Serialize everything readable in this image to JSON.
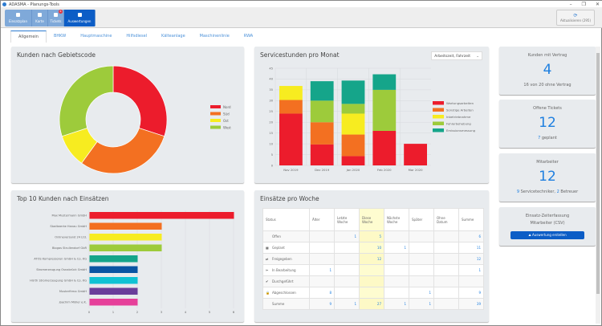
{
  "window": {
    "title": "ADASMA - Planungs-Tools",
    "min": "–",
    "max": "❐",
    "close": "✕"
  },
  "toolbar": {
    "buttons": [
      {
        "label": "Einsatzplan",
        "icon": "calendar-icon"
      },
      {
        "label": "Karte",
        "icon": "map-icon"
      },
      {
        "label": "Tickets",
        "icon": "chat-icon",
        "badge": "6"
      },
      {
        "label": "Auswertungen",
        "icon": "chart-icon",
        "active": true
      }
    ],
    "refresh_label": "Aktualisieren (295)"
  },
  "tabs": [
    "Allgemein",
    "BHKW",
    "Hauptmaschine",
    "Hilfsdiesel",
    "Kälteanlage",
    "Maschinenlinie",
    "RWA"
  ],
  "colors": {
    "red": "#ec1c2c",
    "orange": "#f37021",
    "yellow": "#f7ec20",
    "green": "#9dcb3b",
    "teal": "#15a58a",
    "navy": "#0a55a3",
    "cyan": "#0fc2d4",
    "purple": "#6a3d9a",
    "pink": "#e6409a",
    "accent": "#1e7fe0"
  },
  "chart_data": [
    {
      "type": "pie",
      "title": "Kunden nach Gebietscode",
      "categories": [
        "Nord",
        "Süd",
        "Ost",
        "West"
      ],
      "values": [
        3,
        3,
        1,
        3
      ],
      "legend": "right"
    },
    {
      "type": "bar",
      "stacked": true,
      "title": "Servicestunden pro Monat",
      "categories": [
        "Nov 2019",
        "Dez 2019",
        "Jan 2020",
        "Feb 2020",
        "Mar 2020"
      ],
      "ylim": [
        0,
        45
      ],
      "yticks": [
        0,
        5,
        10,
        15,
        20,
        25,
        30,
        35,
        40,
        45
      ],
      "grid": true,
      "legend": "right",
      "series": [
        {
          "name": "Wartungsarbeiten",
          "values": [
            24,
            9.7,
            4.3,
            16,
            10
          ]
        },
        {
          "name": "Sonstige Arbeiten",
          "values": [
            6.3,
            10.3,
            10,
            0,
            0
          ]
        },
        {
          "name": "Inbetriebnahme",
          "values": [
            6.5,
            0,
            9.7,
            0,
            0
          ]
        },
        {
          "name": "Fehlerbehebung",
          "values": [
            0,
            10,
            4.5,
            19,
            0
          ]
        },
        {
          "name": "Emissionsmessung",
          "values": [
            0,
            9,
            10.8,
            7.2,
            0
          ]
        }
      ]
    },
    {
      "type": "bar",
      "orientation": "horizontal",
      "title": "Top 10 Kunden nach Einsätzen",
      "categories": [
        "Max Mustermann GmbH",
        "Stadtwerke Hanau GmbH",
        "Onlineversand 24 Ltd.",
        "Biogas Strullendorf GbR",
        "ATOS Kompressoren GmbH & Co. KG",
        "Stromerzeugung Osnabrück GmbH",
        "Hürth Stromerzeugung GmbH & Co. KG",
        "Musterfirma GmbH",
        "Joachim Müller e.K."
      ],
      "values": [
        6,
        3,
        3,
        3,
        2,
        2,
        2,
        2,
        2
      ],
      "xlim": [
        0,
        6
      ],
      "xticks": [
        0,
        1,
        2,
        3,
        4,
        5,
        6
      ],
      "grid": true
    }
  ],
  "service_select": "Arbeitszeit, Fahrzeit",
  "kpis": [
    {
      "title": "Kunden mit Vertrag",
      "value": "4",
      "sub": "16 von 20 ohne Vertrag"
    },
    {
      "title": "Offene Tickets",
      "value": "12",
      "sub_num": "7",
      "sub": " geplant"
    },
    {
      "title": "Mitarbeiter",
      "value": "12",
      "sub_num1": "9",
      "sub1": " Servicetechniker, ",
      "sub_num2": "2",
      "sub2": " Betreuer"
    }
  ],
  "export": {
    "title1": "Einsatz-Zeiterfassung",
    "title2": "Mitarbeiter (CSV)",
    "button": "Auswertung erstellen"
  },
  "week_table": {
    "title": "Einsätze pro Woche",
    "headers": [
      "Status",
      "Älter",
      "Letzte Woche",
      "Diese Woche",
      "Nächste Woche",
      "Später",
      "Ohne Datum",
      "Summe"
    ],
    "rows": [
      {
        "icon": "",
        "cells": [
          "Offen",
          "",
          "1",
          "5",
          "",
          "",
          "",
          "6"
        ]
      },
      {
        "icon": "calendar-icon",
        "cells": [
          "Geplant",
          "",
          "",
          "10",
          "1",
          "",
          "",
          "11"
        ]
      },
      {
        "icon": "release-icon",
        "cells": [
          "Freigegeben",
          "",
          "",
          "12",
          "",
          "",
          "",
          "12"
        ]
      },
      {
        "icon": "tools-icon",
        "cells": [
          "In Bearbeitung",
          "1",
          "",
          "",
          "",
          "",
          "",
          "1"
        ]
      },
      {
        "icon": "check-icon",
        "cells": [
          "Durchgeführt",
          "",
          "",
          "",
          "",
          "",
          "",
          ""
        ]
      },
      {
        "icon": "lock-icon",
        "cells": [
          "Abgeschlossen",
          "8",
          "",
          "",
          "",
          "1",
          "",
          "9"
        ]
      },
      {
        "icon": "",
        "cells": [
          "Summe",
          "9",
          "1",
          "27",
          "1",
          "1",
          "",
          "39"
        ]
      }
    ]
  }
}
